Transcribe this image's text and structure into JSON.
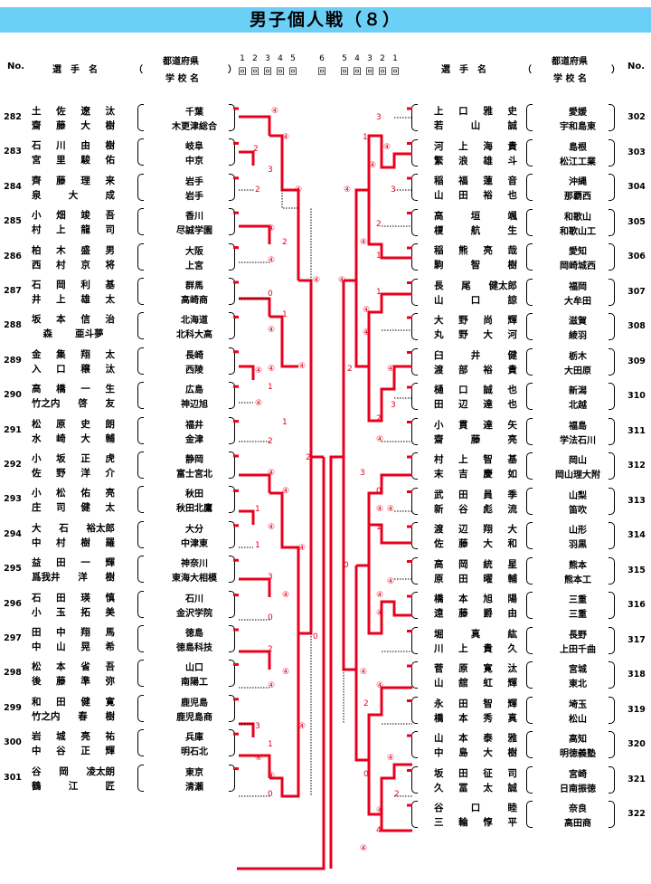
{
  "title": "男子個人戦（８）",
  "header": {
    "no": "No.",
    "player": "選　手　名",
    "paren_open": "（",
    "paren_close": "）",
    "pref": "都道府県",
    "school": "学 校 名"
  },
  "rounds": {
    "left": [
      "1",
      "2",
      "3",
      "4",
      "5"
    ],
    "center": "6",
    "right": [
      "5",
      "4",
      "3",
      "2",
      "1"
    ],
    "kai": "回"
  },
  "left": [
    {
      "no": "282",
      "p1": "土　佐　遼　汰",
      "p2": "齋　藤　大　樹",
      "pref": "千葉",
      "school": "木更津総合"
    },
    {
      "no": "283",
      "p1": "石　川　由　樹",
      "p2": "宮　里　駿　佑",
      "pref": "岐阜",
      "school": "中京"
    },
    {
      "no": "284",
      "p1": "齊　藤　理　来",
      "p2": "泉　大　成",
      "pref": "岩手",
      "school": "岩手"
    },
    {
      "no": "285",
      "p1": "小　畑　竣　吾",
      "p2": "村　上　龍　司",
      "pref": "香川",
      "school": "尽誠学園"
    },
    {
      "no": "286",
      "p1": "柏　木　盛　男",
      "p2": "西　村　京　将",
      "pref": "大阪",
      "school": "上宮"
    },
    {
      "no": "287",
      "p1": "石　岡　利　基",
      "p2": "井　上　雄　太",
      "pref": "群馬",
      "school": "高崎商"
    },
    {
      "no": "288",
      "p1": "坂　本　信　治",
      "p2": "森　亜斗夢",
      "pref": "北海道",
      "school": "北科大高"
    },
    {
      "no": "289",
      "p1": "金　集　翔　太",
      "p2": "入　口　穣　汰",
      "pref": "長崎",
      "school": "西陵"
    },
    {
      "no": "290",
      "p1": "高　橋　一　生",
      "p2": "竹之内　啓　友",
      "pref": "広島",
      "school": "神辺旭"
    },
    {
      "no": "291",
      "p1": "松　原　史　朗",
      "p2": "水　崎　大　輔",
      "pref": "福井",
      "school": "金津"
    },
    {
      "no": "292",
      "p1": "小　坂　正　虎",
      "p2": "佐　野　洋　介",
      "pref": "静岡",
      "school": "富士宮北"
    },
    {
      "no": "293",
      "p1": "小　松　佑　亮",
      "p2": "庄　司　健　太",
      "pref": "秋田",
      "school": "秋田北鷹"
    },
    {
      "no": "294",
      "p1": "大　石　裕太郎",
      "p2": "中　村　樹　羅",
      "pref": "大分",
      "school": "中津東"
    },
    {
      "no": "295",
      "p1": "益　田　一　輝",
      "p2": "爲我井　洋　樹",
      "pref": "神奈川",
      "school": "東海大相模"
    },
    {
      "no": "296",
      "p1": "石　田　瑛　慎",
      "p2": "小　玉　拓　美",
      "pref": "石川",
      "school": "金沢学院"
    },
    {
      "no": "297",
      "p1": "田　中　翔　馬",
      "p2": "中　山　晃　希",
      "pref": "徳島",
      "school": "徳島科技"
    },
    {
      "no": "298",
      "p1": "松　本　省　吾",
      "p2": "後　藤　準　弥",
      "pref": "山口",
      "school": "南陽工"
    },
    {
      "no": "299",
      "p1": "和　田　健　寛",
      "p2": "竹之内　春　樹",
      "pref": "鹿児島",
      "school": "鹿児島商"
    },
    {
      "no": "300",
      "p1": "岩　城　亮　祐",
      "p2": "中　谷　正　輝",
      "pref": "兵庫",
      "school": "明石北"
    },
    {
      "no": "301",
      "p1": "谷　岡　凌太朗",
      "p2": "鶴　江　匠",
      "pref": "東京",
      "school": "清瀬"
    }
  ],
  "right": [
    {
      "no": "302",
      "p1": "上　口　雅　史",
      "p2": "若　山　誠",
      "pref": "愛媛",
      "school": "宇和島東"
    },
    {
      "no": "303",
      "p1": "河　上　海　貴",
      "p2": "繁　浪　雄　斗",
      "pref": "島根",
      "school": "松江工業"
    },
    {
      "no": "304",
      "p1": "稲　福　蓮　音",
      "p2": "山　田　裕　也",
      "pref": "沖縄",
      "school": "那覇西"
    },
    {
      "no": "305",
      "p1": "高　垣　颯",
      "p2": "榎　航　生",
      "pref": "和歌山",
      "school": "和歌山工"
    },
    {
      "no": "306",
      "p1": "稲　熊　亮　哉",
      "p2": "駒　智　樹",
      "pref": "愛知",
      "school": "岡崎城西"
    },
    {
      "no": "307",
      "p1": "長　尾　健太郎",
      "p2": "山　口　諒",
      "pref": "福岡",
      "school": "大牟田"
    },
    {
      "no": "308",
      "p1": "大　野　尚　輝",
      "p2": "丸　野　大　河",
      "pref": "滋賀",
      "school": "綾羽"
    },
    {
      "no": "309",
      "p1": "臼　井　健",
      "p2": "渡　部　裕　貴",
      "pref": "栃木",
      "school": "大田原"
    },
    {
      "no": "310",
      "p1": "樋　口　誠　也",
      "p2": "田　辺　達　也",
      "pref": "新潟",
      "school": "北越"
    },
    {
      "no": "311",
      "p1": "小　貫　達　矢",
      "p2": "齋　藤　亮",
      "pref": "福島",
      "school": "学法石川"
    },
    {
      "no": "312",
      "p1": "村　上　智　基",
      "p2": "末　吉　慶　如",
      "pref": "岡山",
      "school": "岡山理大附"
    },
    {
      "no": "313",
      "p1": "武　田　員　季",
      "p2": "新　谷　彪　流",
      "pref": "山梨",
      "school": "笛吹"
    },
    {
      "no": "314",
      "p1": "渡　辺　翔　大",
      "p2": "佐　藤　大　和",
      "pref": "山形",
      "school": "羽黒"
    },
    {
      "no": "315",
      "p1": "高　岡　統　星",
      "p2": "原　田　曜　輔",
      "pref": "熊本",
      "school": "熊本工"
    },
    {
      "no": "316",
      "p1": "橋　本　旭　陽",
      "p2": "遠　藤　爵　由",
      "pref": "三重",
      "school": "三重"
    },
    {
      "no": "317",
      "p1": "堀　真　紘",
      "p2": "川　上　貴　久",
      "pref": "長野",
      "school": "上田千曲"
    },
    {
      "no": "318",
      "p1": "菅　原　寛　汰",
      "p2": "山　舘　虹　輝",
      "pref": "宮城",
      "school": "東北"
    },
    {
      "no": "319",
      "p1": "永　田　智　輝",
      "p2": "橋　本　秀　真",
      "pref": "埼玉",
      "school": "松山"
    },
    {
      "no": "320",
      "p1": "山　本　泰　雅",
      "p2": "中　島　大　樹",
      "pref": "高知",
      "school": "明徳義塾"
    },
    {
      "no": "321",
      "p1": "坂　田　征　司",
      "p2": "久　冨　太　誠",
      "pref": "宮崎",
      "school": "日南振徳"
    },
    {
      "no": "322",
      "p1": "谷　口　睦",
      "p2": "三　輪　惇　平",
      "pref": "奈良",
      "school": "高田商"
    }
  ],
  "scores": {
    "four": "④",
    "left": [
      "④",
      "④",
      "2",
      "3",
      "2",
      "④",
      "④",
      "2",
      "④",
      "0",
      "1",
      "④",
      "④",
      "④",
      "④",
      "1",
      "④",
      "1",
      "2",
      "④",
      "④",
      "1",
      "④",
      "1",
      "④",
      "3",
      "④",
      "0",
      "2",
      "④",
      "④",
      "3",
      "④",
      "1",
      "④",
      "④",
      "0"
    ],
    "right": [
      "3",
      "1",
      "④",
      "④",
      "3",
      "④",
      "2",
      "④",
      "1",
      "④",
      "1",
      "④",
      "2",
      "④",
      "3",
      "2",
      "④",
      "3",
      "0",
      "④",
      "④",
      "1",
      "0",
      "④",
      "④",
      "④",
      "④",
      "2",
      "④",
      "0",
      "④",
      "2",
      "④",
      "4",
      "④"
    ],
    "center": [
      "2",
      "④",
      "④",
      "0"
    ]
  },
  "colors": {
    "accent": "#e8001e",
    "title_bg": "#6ccff6"
  }
}
